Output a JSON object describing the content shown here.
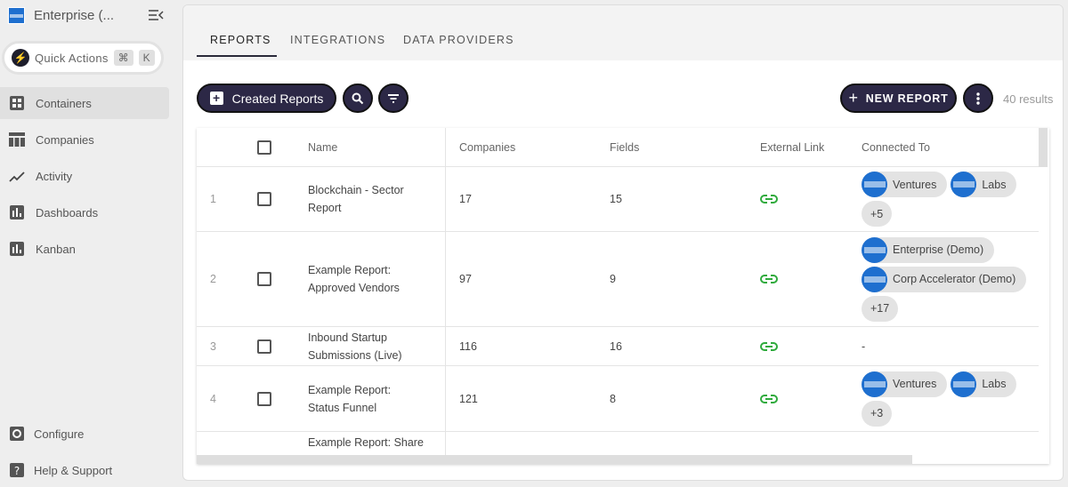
{
  "sidebar": {
    "org_name": "Enterprise (...",
    "org_logo_text": "AMERICAN EXPRESS",
    "quick_actions": "Quick Actions",
    "shortcut_keys": [
      "⌘",
      "K"
    ],
    "items": [
      {
        "label": "Containers",
        "icon": "grid-icon",
        "active": true
      },
      {
        "label": "Companies",
        "icon": "table-icon"
      },
      {
        "label": "Activity",
        "icon": "trend-line-icon"
      },
      {
        "label": "Dashboards",
        "icon": "bar-chart-icon"
      },
      {
        "label": "Kanban",
        "icon": "bar-chart-icon"
      }
    ],
    "footer": [
      {
        "label": "Configure",
        "icon": "gear-icon"
      },
      {
        "label": "Help & Support",
        "icon": "help-icon"
      }
    ]
  },
  "tabs": [
    {
      "label": "REPORTS",
      "active": true
    },
    {
      "label": "INTEGRATIONS"
    },
    {
      "label": "DATA PROVIDERS"
    }
  ],
  "toolbar": {
    "filter_label": "Created Reports",
    "new_report": "NEW REPORT",
    "results": "40 results"
  },
  "table": {
    "columns": [
      "Name",
      "Companies",
      "Fields",
      "External Link",
      "Connected To"
    ],
    "rows": [
      {
        "num": "1",
        "name": "Blockchain - Sector Report",
        "companies": "17",
        "fields": "15",
        "connected": [
          "Ventures",
          "Labs"
        ],
        "more": "+5"
      },
      {
        "num": "2",
        "name": "Example Report: Approved Vendors",
        "companies": "97",
        "fields": "9",
        "connected": [
          "Enterprise (Demo)",
          "Corp Accelerator (Demo)"
        ],
        "more": "+17"
      },
      {
        "num": "3",
        "name": "Inbound Startup Submissions (Live)",
        "companies": "116",
        "fields": "16",
        "connected": [],
        "empty": "-"
      },
      {
        "num": "4",
        "name": "Example Report: Status Funnel",
        "companies": "121",
        "fields": "8",
        "connected": [
          "Ventures",
          "Labs"
        ],
        "more": "+3"
      },
      {
        "num": "",
        "name": "Example Report: Share",
        "companies": "",
        "fields": "",
        "connected": []
      }
    ]
  },
  "colors": {
    "accent": "#2c2846",
    "link": "#2eaa3c",
    "brand": "#1e6fcf"
  }
}
